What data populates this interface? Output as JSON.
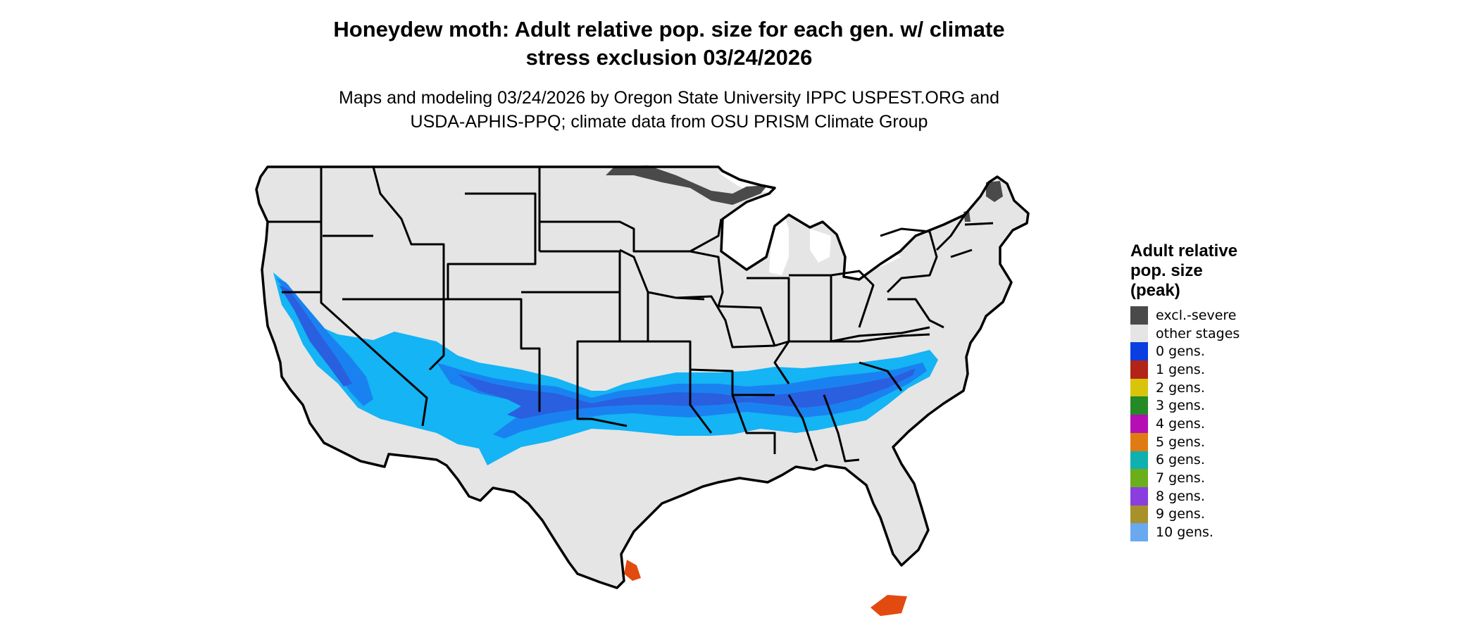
{
  "title_line1": "Honeydew moth: Adult relative pop. size for each gen. w/ climate",
  "title_line2": "stress exclusion 03/24/2026",
  "subtitle_line1": "Maps and modeling 03/24/2026 by Oregon State University IPPC USPEST.ORG and",
  "subtitle_line2": "USDA-APHIS-PPQ; climate data from OSU PRISM Climate Group",
  "legend": {
    "title_lines": [
      "Adult relative",
      "pop. size",
      "(peak)"
    ],
    "items": [
      {
        "label": "excl.-severe",
        "color": "#4a4a4a"
      },
      {
        "label": "other stages",
        "color": "#e5e5e5"
      },
      {
        "label": "0 gens.",
        "color": "#0a3ee0"
      },
      {
        "label": "1 gens.",
        "color": "#b22418"
      },
      {
        "label": "2 gens.",
        "color": "#d9c40c"
      },
      {
        "label": "3 gens.",
        "color": "#248a26"
      },
      {
        "label": "4 gens.",
        "color": "#b40eb4"
      },
      {
        "label": "5 gens.",
        "color": "#e07a12"
      },
      {
        "label": "6 gens.",
        "color": "#0fb0b0"
      },
      {
        "label": "7 gens.",
        "color": "#6aae1a"
      },
      {
        "label": "8 gens.",
        "color": "#8a3ee0"
      },
      {
        "label": "9 gens.",
        "color": "#a8902a"
      },
      {
        "label": "10 gens.",
        "color": "#6aa8f0"
      }
    ]
  },
  "map_colors": {
    "land": "#e5e5e5",
    "boundary": "#000000",
    "excluded": "#4a4a4a",
    "pop_dark": "#2a5fe0",
    "pop_mid": "#1a82f0",
    "pop_light": "#14b4f5",
    "pop_high": "#e24a10"
  }
}
